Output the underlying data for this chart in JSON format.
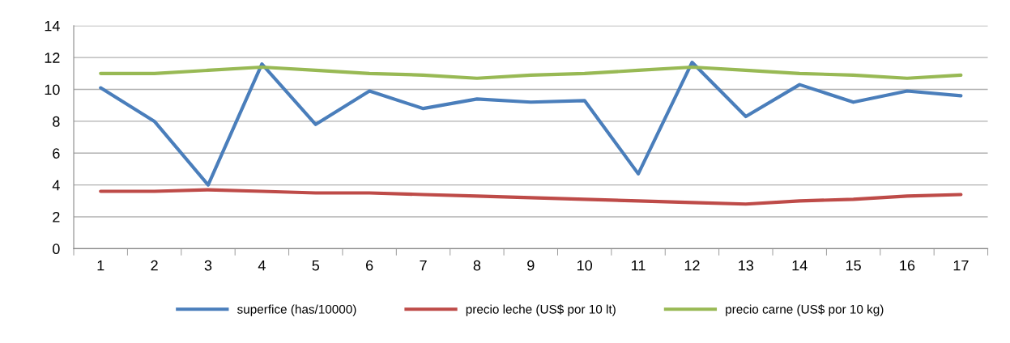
{
  "chart_data": {
    "type": "line",
    "categories": [
      "1",
      "2",
      "3",
      "4",
      "5",
      "6",
      "7",
      "8",
      "9",
      "10",
      "11",
      "12",
      "13",
      "14",
      "15",
      "16",
      "17"
    ],
    "ylim": [
      0,
      14
    ],
    "yticks": [
      0,
      2,
      4,
      6,
      8,
      10,
      12,
      14
    ],
    "grid": "y",
    "legend": "bottom",
    "marker": "none",
    "line_style": "solid",
    "series": [
      {
        "name": "superfice (has/10000)",
        "color": "#4a7ebb",
        "values": [
          10.1,
          8.0,
          4.0,
          11.6,
          7.8,
          9.9,
          8.8,
          9.4,
          9.2,
          9.3,
          4.7,
          11.7,
          8.3,
          10.3,
          9.2,
          9.9,
          9.6
        ]
      },
      {
        "name": "precio leche (US$ por 10 lt)",
        "color": "#be4b48",
        "values": [
          3.6,
          3.6,
          3.7,
          3.6,
          3.5,
          3.5,
          3.4,
          3.3,
          3.2,
          3.1,
          3.0,
          2.9,
          2.8,
          3.0,
          3.1,
          3.3,
          3.4
        ]
      },
      {
        "name": "precio carne (US$ por 10 kg)",
        "color": "#98b954",
        "values": [
          11.0,
          11.0,
          11.2,
          11.4,
          11.2,
          11.0,
          10.9,
          10.7,
          10.9,
          11.0,
          11.2,
          11.4,
          11.2,
          11.0,
          10.9,
          10.7,
          10.9
        ]
      }
    ]
  }
}
